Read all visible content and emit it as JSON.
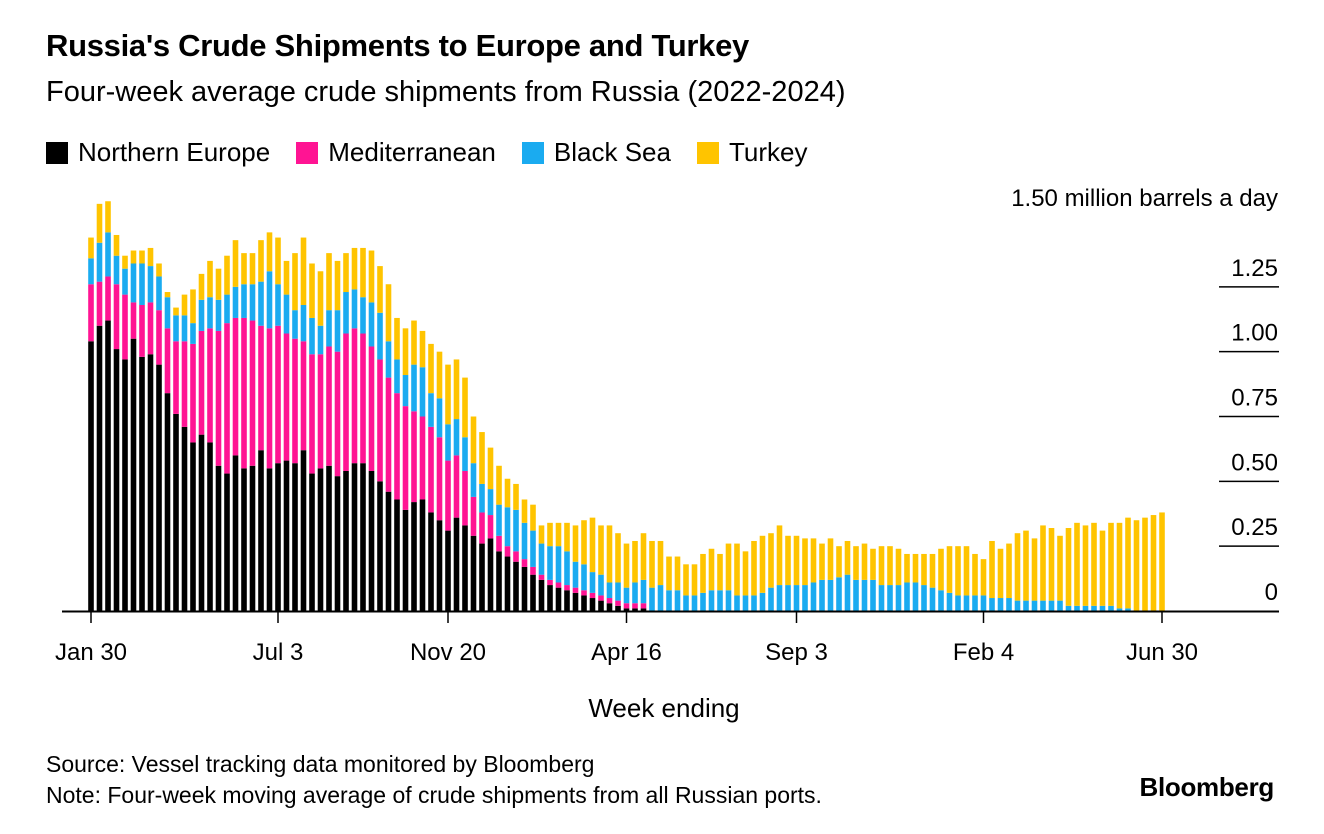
{
  "chart_data": {
    "type": "bar",
    "stacked": true,
    "title": "Russia's Crude Shipments to Europe and Turkey",
    "subtitle": "Four-week average crude shipments from Russia (2022-2024)",
    "xlabel": "Week ending",
    "unit_label": "1.50 million barrels a day",
    "ylim": [
      0,
      1.5
    ],
    "y_ticks": [
      {
        "value": 0.25,
        "label": "0.25"
      },
      {
        "value": 0.5,
        "label": "0.50"
      },
      {
        "value": 0.75,
        "label": "0.75"
      },
      {
        "value": 1.0,
        "label": "1.00"
      },
      {
        "value": 1.25,
        "label": "1.25"
      },
      {
        "value": 0,
        "label": "0"
      }
    ],
    "x_ticks": [
      {
        "index": 0,
        "label": "Jan 30"
      },
      {
        "index": 22,
        "label": "Jul 3"
      },
      {
        "index": 42,
        "label": "Nov 20"
      },
      {
        "index": 63,
        "label": "Apr 16"
      },
      {
        "index": 83,
        "label": "Sep 3"
      },
      {
        "index": 105,
        "label": "Feb 4"
      },
      {
        "index": 126,
        "label": "Jun 30"
      }
    ],
    "x_end_index": 140,
    "legend": [
      {
        "name": "Northern Europe",
        "color": "#000000"
      },
      {
        "name": "Mediterranean",
        "color": "#ff1493"
      },
      {
        "name": "Black Sea",
        "color": "#1aabf0"
      },
      {
        "name": "Turkey",
        "color": "#ffc400"
      }
    ],
    "series": [
      {
        "name": "Northern Europe",
        "color": "#000000",
        "values": [
          1.04,
          1.1,
          1.12,
          1.01,
          0.97,
          1.05,
          0.98,
          0.99,
          0.95,
          0.84,
          0.76,
          0.71,
          0.65,
          0.68,
          0.65,
          0.56,
          0.53,
          0.6,
          0.55,
          0.56,
          0.62,
          0.55,
          0.57,
          0.58,
          0.57,
          0.62,
          0.53,
          0.55,
          0.56,
          0.52,
          0.54,
          0.57,
          0.57,
          0.54,
          0.5,
          0.46,
          0.43,
          0.39,
          0.42,
          0.43,
          0.38,
          0.35,
          0.31,
          0.36,
          0.33,
          0.29,
          0.26,
          0.28,
          0.23,
          0.21,
          0.19,
          0.17,
          0.14,
          0.12,
          0.1,
          0.09,
          0.08,
          0.07,
          0.06,
          0.05,
          0.04,
          0.03,
          0.02,
          0.01,
          0.01,
          0.01,
          0.0,
          0.0,
          0.0,
          0.0,
          0.0,
          0.0,
          0.0,
          0.0,
          0.0,
          0.0,
          0.0,
          0.0,
          0.0,
          0.0,
          0.0,
          0.0,
          0.0,
          0.0,
          0.0,
          0.0,
          0.0,
          0.0,
          0.0,
          0.0,
          0.0,
          0.0,
          0.0,
          0.0,
          0.0,
          0.0,
          0.0,
          0.0,
          0.0,
          0.0,
          0.0,
          0.0,
          0.0,
          0.0,
          0.0,
          0.0,
          0.0,
          0.0,
          0.0,
          0.0,
          0.0,
          0.0,
          0.0,
          0.0,
          0.0,
          0.0,
          0.0,
          0.0,
          0.0,
          0.0,
          0.0,
          0.0,
          0.0,
          0.0,
          0.0,
          0.0,
          0.0
        ]
      },
      {
        "name": "Mediterranean",
        "color": "#ff1493",
        "values": [
          0.22,
          0.17,
          0.17,
          0.25,
          0.25,
          0.14,
          0.2,
          0.2,
          0.21,
          0.25,
          0.28,
          0.33,
          0.38,
          0.4,
          0.44,
          0.52,
          0.58,
          0.53,
          0.58,
          0.56,
          0.48,
          0.54,
          0.53,
          0.49,
          0.48,
          0.42,
          0.46,
          0.44,
          0.46,
          0.48,
          0.53,
          0.52,
          0.5,
          0.48,
          0.47,
          0.44,
          0.41,
          0.4,
          0.35,
          0.32,
          0.33,
          0.32,
          0.27,
          0.24,
          0.21,
          0.15,
          0.12,
          0.09,
          0.06,
          0.04,
          0.04,
          0.03,
          0.03,
          0.02,
          0.02,
          0.02,
          0.02,
          0.02,
          0.02,
          0.02,
          0.02,
          0.02,
          0.02,
          0.02,
          0.02,
          0.02,
          0.0,
          0.0,
          0.0,
          0.0,
          0.0,
          0.0,
          0.0,
          0.0,
          0.0,
          0.0,
          0.0,
          0.0,
          0.0,
          0.0,
          0.0,
          0.0,
          0.0,
          0.0,
          0.0,
          0.0,
          0.0,
          0.0,
          0.0,
          0.0,
          0.0,
          0.0,
          0.0,
          0.0,
          0.0,
          0.0,
          0.0,
          0.0,
          0.0,
          0.0,
          0.0,
          0.0,
          0.0,
          0.0,
          0.0,
          0.0,
          0.0,
          0.0,
          0.0,
          0.0,
          0.0,
          0.0,
          0.0,
          0.0,
          0.0,
          0.0,
          0.0,
          0.0,
          0.0,
          0.0,
          0.0,
          0.0,
          0.0,
          0.0,
          0.0,
          0.0,
          0.0
        ]
      },
      {
        "name": "Black Sea",
        "color": "#1aabf0",
        "values": [
          0.1,
          0.15,
          0.17,
          0.11,
          0.1,
          0.15,
          0.16,
          0.14,
          0.13,
          0.12,
          0.1,
          0.1,
          0.08,
          0.12,
          0.12,
          0.12,
          0.11,
          0.12,
          0.13,
          0.14,
          0.17,
          0.22,
          0.16,
          0.15,
          0.11,
          0.14,
          0.14,
          0.11,
          0.14,
          0.16,
          0.16,
          0.15,
          0.14,
          0.17,
          0.18,
          0.14,
          0.13,
          0.12,
          0.18,
          0.19,
          0.13,
          0.15,
          0.14,
          0.14,
          0.13,
          0.13,
          0.11,
          0.1,
          0.12,
          0.15,
          0.16,
          0.14,
          0.14,
          0.12,
          0.13,
          0.14,
          0.13,
          0.1,
          0.1,
          0.08,
          0.08,
          0.06,
          0.07,
          0.06,
          0.08,
          0.09,
          0.09,
          0.1,
          0.08,
          0.08,
          0.06,
          0.06,
          0.07,
          0.08,
          0.08,
          0.08,
          0.06,
          0.06,
          0.06,
          0.07,
          0.09,
          0.1,
          0.1,
          0.1,
          0.1,
          0.11,
          0.12,
          0.12,
          0.13,
          0.14,
          0.12,
          0.12,
          0.12,
          0.1,
          0.1,
          0.1,
          0.11,
          0.11,
          0.1,
          0.09,
          0.08,
          0.07,
          0.06,
          0.06,
          0.06,
          0.06,
          0.05,
          0.05,
          0.05,
          0.04,
          0.04,
          0.04,
          0.04,
          0.04,
          0.04,
          0.02,
          0.02,
          0.02,
          0.02,
          0.02,
          0.02,
          0.01,
          0.01,
          0.0,
          0.0,
          0.0,
          0.0
        ]
      },
      {
        "name": "Turkey",
        "color": "#ffc400",
        "values": [
          0.08,
          0.15,
          0.12,
          0.08,
          0.05,
          0.05,
          0.05,
          0.07,
          0.05,
          0.02,
          0.03,
          0.08,
          0.13,
          0.1,
          0.14,
          0.12,
          0.15,
          0.18,
          0.12,
          0.12,
          0.16,
          0.15,
          0.18,
          0.13,
          0.22,
          0.26,
          0.21,
          0.21,
          0.22,
          0.19,
          0.15,
          0.16,
          0.19,
          0.2,
          0.18,
          0.22,
          0.16,
          0.18,
          0.17,
          0.14,
          0.19,
          0.18,
          0.23,
          0.23,
          0.23,
          0.18,
          0.2,
          0.16,
          0.15,
          0.11,
          0.1,
          0.09,
          0.1,
          0.07,
          0.09,
          0.09,
          0.11,
          0.14,
          0.17,
          0.21,
          0.19,
          0.22,
          0.19,
          0.17,
          0.16,
          0.18,
          0.18,
          0.17,
          0.13,
          0.13,
          0.12,
          0.12,
          0.15,
          0.16,
          0.14,
          0.18,
          0.2,
          0.17,
          0.21,
          0.22,
          0.21,
          0.23,
          0.19,
          0.19,
          0.18,
          0.17,
          0.14,
          0.16,
          0.12,
          0.13,
          0.13,
          0.14,
          0.12,
          0.15,
          0.15,
          0.14,
          0.11,
          0.11,
          0.12,
          0.13,
          0.16,
          0.18,
          0.19,
          0.19,
          0.16,
          0.14,
          0.22,
          0.19,
          0.21,
          0.26,
          0.27,
          0.24,
          0.29,
          0.28,
          0.25,
          0.3,
          0.32,
          0.31,
          0.32,
          0.29,
          0.32,
          0.33,
          0.35,
          0.35,
          0.36,
          0.37,
          0.38
        ]
      }
    ]
  },
  "footer": {
    "source": "Source: Vessel tracking data monitored by Bloomberg",
    "note": "Note: Four-week moving average of crude shipments from all Russian ports.",
    "brand": "Bloomberg"
  }
}
